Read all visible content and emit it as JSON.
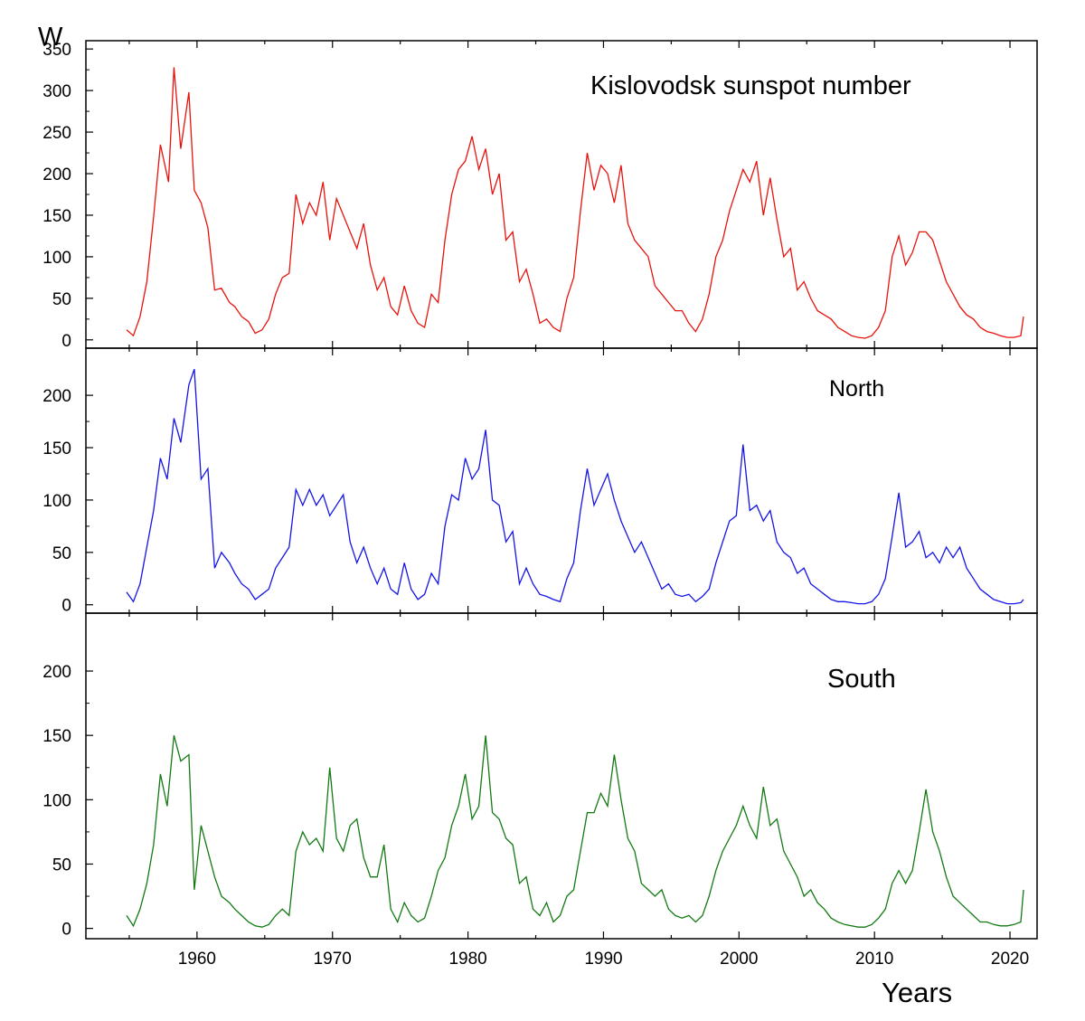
{
  "figure": {
    "ylabel": "W",
    "xlabel": "Years",
    "x_ticks": [
      1960,
      1970,
      1980,
      1990,
      2000,
      2010,
      2020
    ],
    "xlim": [
      1951.8,
      2022.0
    ]
  },
  "chart_data": [
    {
      "type": "line",
      "title": "Kislovodsk sunspot number",
      "xlabel": "Years",
      "ylabel": "W",
      "xlim": [
        1951.8,
        2022.0
      ],
      "ylim": [
        -10,
        360
      ],
      "y_ticks": [
        0,
        50,
        100,
        150,
        200,
        250,
        300,
        350
      ],
      "grid": false,
      "series": [
        {
          "color": "#e8120c",
          "x": [
            1954.8,
            1955.3,
            1955.8,
            1956.3,
            1956.8,
            1957.3,
            1957.9,
            1958.3,
            1958.8,
            1959.4,
            1959.8,
            1960.3,
            1960.8,
            1961.3,
            1961.8,
            1962.4,
            1962.8,
            1963.3,
            1963.8,
            1964.3,
            1964.8,
            1965.3,
            1965.8,
            1966.3,
            1966.8,
            1967.3,
            1967.8,
            1968.3,
            1968.8,
            1969.3,
            1969.8,
            1970.3,
            1970.8,
            1971.3,
            1971.8,
            1972.3,
            1972.8,
            1973.3,
            1973.8,
            1974.3,
            1974.8,
            1975.3,
            1975.8,
            1976.3,
            1976.8,
            1977.3,
            1977.8,
            1978.3,
            1978.8,
            1979.3,
            1979.8,
            1980.3,
            1980.8,
            1981.3,
            1981.8,
            1982.3,
            1982.8,
            1983.3,
            1983.8,
            1984.3,
            1984.8,
            1985.3,
            1985.8,
            1986.3,
            1986.8,
            1987.3,
            1987.8,
            1988.3,
            1988.8,
            1989.3,
            1989.8,
            1990.3,
            1990.8,
            1991.3,
            1991.8,
            1992.3,
            1992.8,
            1993.3,
            1993.8,
            1994.3,
            1994.8,
            1995.3,
            1995.8,
            1996.3,
            1996.8,
            1997.3,
            1997.8,
            1998.3,
            1998.8,
            1999.3,
            1999.8,
            2000.3,
            2000.8,
            2001.3,
            2001.8,
            2002.3,
            2002.8,
            2003.3,
            2003.8,
            2004.3,
            2004.8,
            2005.3,
            2005.8,
            2006.3,
            2006.8,
            2007.3,
            2007.8,
            2008.3,
            2008.8,
            2009.3,
            2009.8,
            2010.3,
            2010.8,
            2011.3,
            2011.8,
            2012.3,
            2012.8,
            2013.3,
            2013.8,
            2014.3,
            2014.8,
            2015.3,
            2015.8,
            2016.3,
            2016.8,
            2017.3,
            2017.8,
            2018.3,
            2018.8,
            2019.3,
            2019.8,
            2020.3,
            2020.8,
            2021.0
          ],
          "values": [
            12,
            5,
            28,
            70,
            148,
            235,
            190,
            328,
            230,
            298,
            180,
            165,
            135,
            60,
            62,
            45,
            40,
            28,
            22,
            8,
            12,
            25,
            55,
            75,
            80,
            175,
            140,
            165,
            150,
            190,
            120,
            170,
            150,
            130,
            110,
            140,
            90,
            60,
            75,
            40,
            30,
            65,
            35,
            20,
            15,
            55,
            45,
            120,
            175,
            205,
            215,
            245,
            205,
            230,
            175,
            200,
            120,
            130,
            70,
            85,
            55,
            20,
            25,
            15,
            10,
            50,
            75,
            155,
            225,
            180,
            210,
            200,
            165,
            210,
            140,
            120,
            110,
            100,
            65,
            55,
            45,
            35,
            35,
            20,
            10,
            25,
            55,
            100,
            120,
            155,
            180,
            205,
            190,
            215,
            150,
            195,
            145,
            100,
            110,
            60,
            70,
            50,
            35,
            30,
            25,
            15,
            10,
            5,
            3,
            2,
            5,
            15,
            35,
            100,
            125,
            90,
            105,
            130,
            130,
            120,
            95,
            70,
            55,
            40,
            30,
            25,
            15,
            10,
            8,
            5,
            3,
            3,
            5,
            28
          ]
        }
      ]
    },
    {
      "type": "line",
      "title": "North",
      "xlabel": "",
      "ylabel": "",
      "xlim": [
        1951.8,
        2022.0
      ],
      "ylim": [
        -8,
        245
      ],
      "y_ticks": [
        0,
        50,
        100,
        150,
        200
      ],
      "grid": false,
      "series": [
        {
          "color": "#1414e6",
          "x": [
            1954.8,
            1955.3,
            1955.8,
            1956.3,
            1956.8,
            1957.3,
            1957.8,
            1958.3,
            1958.8,
            1959.4,
            1959.8,
            1960.3,
            1960.8,
            1961.3,
            1961.8,
            1962.4,
            1962.8,
            1963.3,
            1963.8,
            1964.3,
            1964.8,
            1965.3,
            1965.8,
            1966.3,
            1966.8,
            1967.3,
            1967.8,
            1968.3,
            1968.8,
            1969.3,
            1969.8,
            1970.3,
            1970.8,
            1971.3,
            1971.8,
            1972.3,
            1972.8,
            1973.3,
            1973.8,
            1974.3,
            1974.8,
            1975.3,
            1975.8,
            1976.3,
            1976.8,
            1977.3,
            1977.8,
            1978.3,
            1978.8,
            1979.3,
            1979.8,
            1980.3,
            1980.8,
            1981.3,
            1981.8,
            1982.3,
            1982.8,
            1983.3,
            1983.8,
            1984.3,
            1984.8,
            1985.3,
            1985.8,
            1986.3,
            1986.8,
            1987.3,
            1987.8,
            1988.3,
            1988.8,
            1989.3,
            1989.8,
            1990.3,
            1990.8,
            1991.3,
            1991.8,
            1992.3,
            1992.8,
            1993.3,
            1993.8,
            1994.3,
            1994.8,
            1995.3,
            1995.8,
            1996.3,
            1996.8,
            1997.3,
            1997.8,
            1998.3,
            1998.8,
            1999.3,
            1999.8,
            2000.3,
            2000.8,
            2001.3,
            2001.8,
            2002.3,
            2002.8,
            2003.3,
            2003.8,
            2004.3,
            2004.8,
            2005.3,
            2005.8,
            2006.3,
            2006.8,
            2007.3,
            2007.8,
            2008.3,
            2008.8,
            2009.3,
            2009.8,
            2010.3,
            2010.8,
            2011.3,
            2011.8,
            2012.3,
            2012.8,
            2013.3,
            2013.8,
            2014.3,
            2014.8,
            2015.3,
            2015.8,
            2016.3,
            2016.8,
            2017.3,
            2017.8,
            2018.3,
            2018.8,
            2019.3,
            2019.8,
            2020.3,
            2020.8,
            2021.0
          ],
          "values": [
            12,
            3,
            20,
            55,
            90,
            140,
            120,
            178,
            155,
            210,
            225,
            120,
            130,
            35,
            50,
            40,
            30,
            20,
            15,
            5,
            10,
            15,
            35,
            45,
            55,
            110,
            95,
            110,
            95,
            105,
            85,
            95,
            105,
            60,
            40,
            55,
            35,
            20,
            35,
            15,
            10,
            40,
            15,
            5,
            10,
            30,
            20,
            75,
            105,
            100,
            140,
            120,
            130,
            167,
            100,
            95,
            60,
            70,
            20,
            35,
            20,
            10,
            8,
            5,
            3,
            25,
            40,
            90,
            130,
            95,
            110,
            125,
            100,
            80,
            65,
            50,
            60,
            45,
            30,
            15,
            20,
            10,
            8,
            10,
            3,
            8,
            15,
            40,
            60,
            80,
            85,
            153,
            90,
            95,
            80,
            90,
            60,
            50,
            45,
            30,
            35,
            20,
            15,
            10,
            5,
            3,
            3,
            2,
            1,
            1,
            3,
            10,
            25,
            65,
            107,
            55,
            60,
            70,
            45,
            50,
            40,
            55,
            45,
            55,
            35,
            25,
            15,
            10,
            5,
            3,
            1,
            1,
            2,
            5
          ]
        }
      ]
    },
    {
      "type": "line",
      "title": "South",
      "xlabel": "Years",
      "ylabel": "",
      "xlim": [
        1951.8,
        2022.0
      ],
      "ylim": [
        -8,
        245
      ],
      "y_ticks": [
        0,
        50,
        100,
        150,
        200
      ],
      "grid": false,
      "series": [
        {
          "color": "#127a12",
          "x": [
            1954.8,
            1955.3,
            1955.8,
            1956.3,
            1956.8,
            1957.3,
            1957.8,
            1958.3,
            1958.8,
            1959.4,
            1959.8,
            1960.3,
            1960.8,
            1961.3,
            1961.8,
            1962.4,
            1962.8,
            1963.3,
            1963.8,
            1964.3,
            1964.8,
            1965.3,
            1965.8,
            1966.3,
            1966.8,
            1967.3,
            1967.8,
            1968.3,
            1968.8,
            1969.3,
            1969.8,
            1970.3,
            1970.8,
            1971.3,
            1971.8,
            1972.3,
            1972.8,
            1973.3,
            1973.8,
            1974.3,
            1974.8,
            1975.3,
            1975.8,
            1976.3,
            1976.8,
            1977.3,
            1977.8,
            1978.3,
            1978.8,
            1979.3,
            1979.8,
            1980.3,
            1980.8,
            1981.3,
            1981.8,
            1982.3,
            1982.8,
            1983.3,
            1983.8,
            1984.3,
            1984.8,
            1985.3,
            1985.8,
            1986.3,
            1986.8,
            1987.3,
            1987.8,
            1988.3,
            1988.8,
            1989.3,
            1989.8,
            1990.3,
            1990.8,
            1991.3,
            1991.8,
            1992.3,
            1992.8,
            1993.3,
            1993.8,
            1994.3,
            1994.8,
            1995.3,
            1995.8,
            1996.3,
            1996.8,
            1997.3,
            1997.8,
            1998.3,
            1998.8,
            1999.3,
            1999.8,
            2000.3,
            2000.8,
            2001.3,
            2001.8,
            2002.3,
            2002.8,
            2003.3,
            2003.8,
            2004.3,
            2004.8,
            2005.3,
            2005.8,
            2006.3,
            2006.8,
            2007.3,
            2007.8,
            2008.3,
            2008.8,
            2009.3,
            2009.8,
            2010.3,
            2010.8,
            2011.3,
            2011.8,
            2012.3,
            2012.8,
            2013.3,
            2013.8,
            2014.3,
            2014.8,
            2015.3,
            2015.8,
            2016.3,
            2016.8,
            2017.3,
            2017.8,
            2018.3,
            2018.8,
            2019.3,
            2019.8,
            2020.3,
            2020.8,
            2021.0
          ],
          "values": [
            10,
            2,
            15,
            35,
            65,
            120,
            95,
            150,
            130,
            135,
            30,
            80,
            60,
            40,
            25,
            20,
            15,
            10,
            5,
            2,
            1,
            3,
            10,
            15,
            10,
            60,
            75,
            65,
            70,
            60,
            125,
            70,
            60,
            80,
            85,
            55,
            40,
            40,
            65,
            15,
            5,
            20,
            10,
            5,
            8,
            25,
            45,
            55,
            80,
            95,
            120,
            85,
            95,
            150,
            90,
            85,
            70,
            65,
            35,
            40,
            15,
            10,
            20,
            5,
            10,
            25,
            30,
            60,
            90,
            90,
            105,
            95,
            135,
            100,
            70,
            60,
            35,
            30,
            25,
            30,
            15,
            10,
            8,
            10,
            5,
            10,
            25,
            45,
            60,
            70,
            80,
            95,
            80,
            70,
            110,
            80,
            85,
            60,
            50,
            40,
            25,
            30,
            20,
            15,
            8,
            5,
            3,
            2,
            1,
            1,
            3,
            8,
            15,
            35,
            45,
            35,
            45,
            75,
            108,
            75,
            60,
            40,
            25,
            20,
            15,
            10,
            5,
            5,
            3,
            2,
            2,
            3,
            5,
            30
          ]
        }
      ]
    }
  ]
}
